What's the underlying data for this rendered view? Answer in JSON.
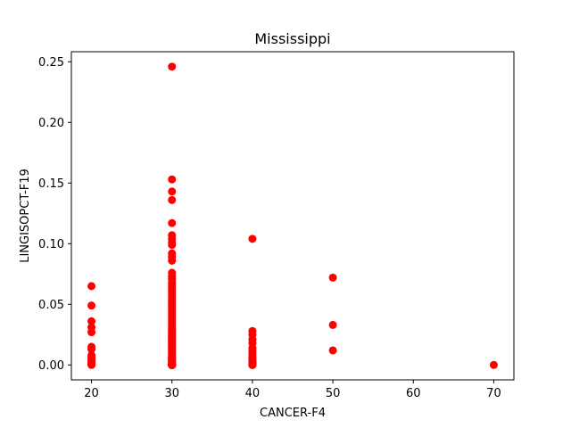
{
  "chart_data": {
    "type": "scatter",
    "title": "Mississippi",
    "xlabel": "CANCER-F4",
    "ylabel": "LINGISOPCT-F19",
    "xlim": [
      17.5,
      72.5
    ],
    "ylim": [
      -0.0123,
      0.2583
    ],
    "xticks": [
      20,
      30,
      40,
      50,
      60,
      70
    ],
    "xtick_labels": [
      "20",
      "30",
      "40",
      "50",
      "60",
      "70"
    ],
    "yticks": [
      0.0,
      0.05,
      0.1,
      0.15,
      0.2,
      0.25
    ],
    "ytick_labels": [
      "0.00",
      "0.05",
      "0.10",
      "0.15",
      "0.20",
      "0.25"
    ],
    "grid": false,
    "marker_color": "#ff0000",
    "series": [
      {
        "x": [
          20,
          20,
          20,
          20,
          20,
          20,
          20,
          20,
          20,
          20,
          20,
          20,
          20,
          20,
          20,
          20,
          30,
          30,
          30,
          30,
          30,
          30,
          30,
          30,
          30,
          30,
          30,
          30,
          30,
          30,
          30,
          30,
          30,
          30,
          30,
          30,
          30,
          30,
          30,
          30,
          30,
          30,
          30,
          30,
          30,
          30,
          30,
          30,
          30,
          30,
          30,
          30,
          30,
          30,
          30,
          30,
          30,
          30,
          30,
          30,
          30,
          30,
          30,
          30,
          30,
          30,
          30,
          30,
          30,
          30,
          30,
          30,
          30,
          30,
          30,
          30,
          30,
          30,
          30,
          30,
          30,
          30,
          30,
          30,
          30,
          30,
          30,
          30,
          30,
          30,
          30,
          30,
          30,
          30,
          30,
          30,
          30,
          30,
          30,
          30,
          30,
          30,
          30,
          30,
          30,
          30,
          30,
          30,
          30,
          30,
          30,
          30,
          30,
          30,
          30,
          30,
          30,
          30,
          30,
          30,
          30,
          30,
          30,
          30,
          30,
          30,
          30,
          30,
          30,
          30,
          40,
          40,
          40,
          40,
          40,
          40,
          40,
          40,
          40,
          40,
          40,
          40,
          40,
          40,
          40,
          40,
          40,
          40,
          40,
          40,
          40,
          40,
          50,
          50,
          50,
          70
        ],
        "y": [
          0.065,
          0.049,
          0.036,
          0.031,
          0.027,
          0.015,
          0.013,
          0.008,
          0.006,
          0.005,
          0.004,
          0.003,
          0.002,
          0.001,
          0.0005,
          0.0,
          0.246,
          0.153,
          0.143,
          0.136,
          0.117,
          0.107,
          0.104,
          0.101,
          0.099,
          0.092,
          0.089,
          0.086,
          0.076,
          0.073,
          0.071,
          0.068,
          0.066,
          0.064,
          0.062,
          0.06,
          0.058,
          0.056,
          0.054,
          0.052,
          0.05,
          0.048,
          0.046,
          0.044,
          0.042,
          0.04,
          0.038,
          0.036,
          0.034,
          0.032,
          0.03,
          0.029,
          0.028,
          0.027,
          0.026,
          0.025,
          0.024,
          0.023,
          0.022,
          0.021,
          0.02,
          0.019,
          0.018,
          0.017,
          0.016,
          0.015,
          0.014,
          0.013,
          0.012,
          0.011,
          0.01,
          0.009,
          0.008,
          0.007,
          0.006,
          0.0055,
          0.005,
          0.0045,
          0.004,
          0.0035,
          0.003,
          0.0025,
          0.002,
          0.0015,
          0.001,
          0.0005,
          0.0,
          0.0,
          0.0,
          0.0,
          0.0,
          0.0,
          0.0,
          0.0,
          0.0,
          0.0,
          0.0,
          0.0,
          0.0,
          0.0,
          0.0,
          0.0,
          0.0,
          0.0,
          0.0,
          0.0,
          0.0,
          0.0,
          0.0,
          0.0,
          0.0,
          0.0,
          0.0,
          0.0,
          0.0,
          0.0,
          0.0,
          0.0,
          0.0,
          0.0,
          0.0,
          0.0,
          0.0,
          0.0,
          0.0,
          0.0,
          0.0,
          0.0,
          0.0,
          0.0,
          0.104,
          0.028,
          0.025,
          0.021,
          0.018,
          0.014,
          0.012,
          0.01,
          0.008,
          0.006,
          0.005,
          0.004,
          0.003,
          0.0025,
          0.002,
          0.0015,
          0.001,
          0.0005,
          0.0,
          0.0,
          0.0,
          0.0,
          0.072,
          0.033,
          0.012,
          0.0
        ]
      }
    ]
  }
}
